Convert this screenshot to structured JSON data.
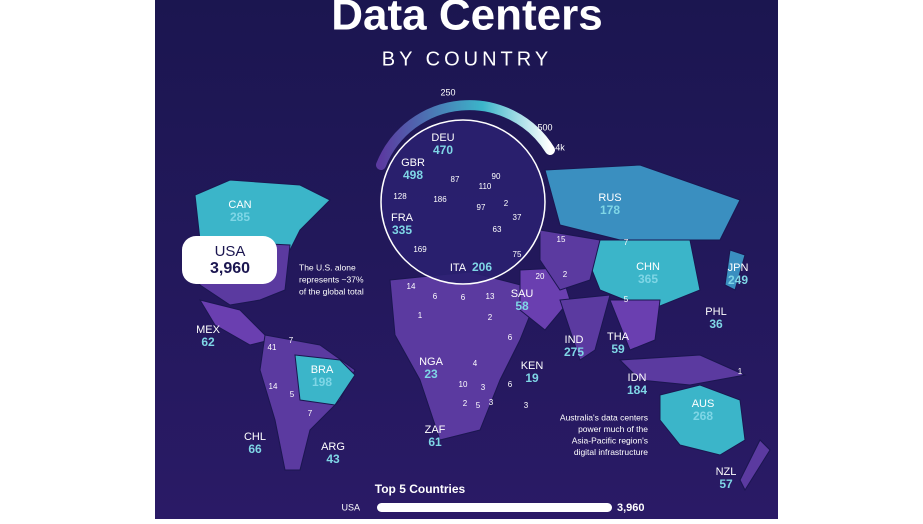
{
  "header": {
    "title": "Data Centers",
    "subtitle": "BY COUNTRY"
  },
  "gauge": {
    "labels": [
      "250",
      "500",
      "4k"
    ]
  },
  "countries": [
    {
      "code": "CAN",
      "count": "285"
    },
    {
      "code": "USA",
      "count": "3,960"
    },
    {
      "code": "MEX",
      "count": "62"
    },
    {
      "code": "BRA",
      "count": "198"
    },
    {
      "code": "CHL",
      "count": "66"
    },
    {
      "code": "ARG",
      "count": "43"
    },
    {
      "code": "GBR",
      "count": "498"
    },
    {
      "code": "DEU",
      "count": "470"
    },
    {
      "code": "FRA",
      "count": "335"
    },
    {
      "code": "ITA",
      "count": "206"
    },
    {
      "code": "RUS",
      "count": "178"
    },
    {
      "code": "CHN",
      "count": "365"
    },
    {
      "code": "JPN",
      "count": "249"
    },
    {
      "code": "IND",
      "count": "275"
    },
    {
      "code": "THA",
      "count": "59"
    },
    {
      "code": "PHL",
      "count": "36"
    },
    {
      "code": "IDN",
      "count": "184"
    },
    {
      "code": "SAU",
      "count": "58"
    },
    {
      "code": "NGA",
      "count": "23"
    },
    {
      "code": "KEN",
      "count": "19"
    },
    {
      "code": "ZAF",
      "count": "61"
    },
    {
      "code": "AUS",
      "count": "268"
    },
    {
      "code": "NZL",
      "count": "57"
    }
  ],
  "minor_counts": [
    "14",
    "6",
    "6",
    "13",
    "1",
    "2",
    "6",
    "4",
    "10",
    "3",
    "6",
    "2",
    "5",
    "3",
    "3",
    "41",
    "7",
    "14",
    "5",
    "7",
    "15",
    "20",
    "2",
    "7",
    "5",
    "1",
    "87",
    "90",
    "110",
    "97",
    "2",
    "37",
    "63",
    "169",
    "75",
    "186",
    "128"
  ],
  "annotations": {
    "usa": [
      "The U.S. alone",
      "represents ~37%",
      "of the global total"
    ],
    "australia": [
      "Australia's data centers",
      "power much of the",
      "Asia-Pacific region's",
      "digital infrastructure"
    ]
  },
  "top5": {
    "title": "Top 5 Countries",
    "rows": [
      {
        "label": "USA",
        "count": "3,960"
      }
    ]
  }
}
